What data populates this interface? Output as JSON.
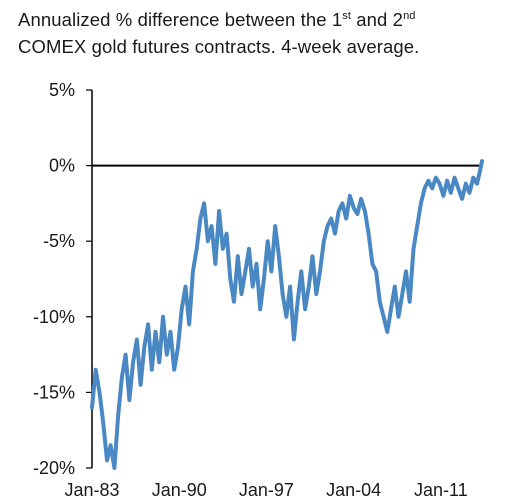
{
  "title": {
    "line1_text": "Annualized % difference between the 1",
    "sup1": "st",
    "and_text": " and 2",
    "sup2": "nd",
    "line2": "COMEX gold futures contracts. 4-week average."
  },
  "chart_data": {
    "type": "line",
    "title": "Annualized % difference between the 1st and 2nd COMEX gold futures contracts. 4-week average.",
    "xlabel": "",
    "ylabel": "",
    "x_tick_labels": [
      "Jan-83",
      "Jan-90",
      "Jan-97",
      "Jan-04",
      "Jan-11"
    ],
    "y_tick_labels": [
      "5%",
      "0%",
      "-5%",
      "-10%",
      "-15%",
      "-20%"
    ],
    "y_ticks": [
      5,
      0,
      -5,
      -10,
      -15,
      -20
    ],
    "ylim": [
      -20,
      5
    ],
    "xlim": [
      1983.0,
      2014.3
    ],
    "grid": false,
    "legend": "none",
    "line_color": "#4a88c4",
    "series": [
      {
        "x": [
          1983.0,
          1983.3,
          1983.6,
          1983.9,
          1984.2,
          1984.5,
          1984.8,
          1985.1,
          1985.4,
          1985.7,
          1986.0,
          1986.3,
          1986.6,
          1986.9,
          1987.2,
          1987.5,
          1987.8,
          1988.1,
          1988.4,
          1988.7,
          1989.0,
          1989.3,
          1989.6,
          1989.9,
          1990.2,
          1990.5,
          1990.8,
          1991.1,
          1991.4,
          1991.7,
          1992.0,
          1992.3,
          1992.6,
          1992.9,
          1993.2,
          1993.5,
          1993.8,
          1994.1,
          1994.4,
          1994.7,
          1995.0,
          1995.3,
          1995.6,
          1995.9,
          1996.2,
          1996.5,
          1996.8,
          1997.1,
          1997.4,
          1997.7,
          1998.0,
          1998.3,
          1998.6,
          1998.9,
          1999.2,
          1999.5,
          1999.8,
          2000.1,
          2000.4,
          2000.7,
          2001.0,
          2001.3,
          2001.6,
          2001.9,
          2002.2,
          2002.5,
          2002.8,
          2003.1,
          2003.4,
          2003.7,
          2004.0,
          2004.3,
          2004.6,
          2004.9,
          2005.2,
          2005.5,
          2005.8,
          2006.1,
          2006.4,
          2006.7,
          2007.0,
          2007.3,
          2007.6,
          2007.9,
          2008.2,
          2008.5,
          2008.8,
          2009.1,
          2009.4,
          2009.7,
          2010.0,
          2010.3,
          2010.6,
          2010.9,
          2011.2,
          2011.5,
          2011.8,
          2012.1,
          2012.4,
          2012.7,
          2013.0,
          2013.3,
          2013.6,
          2013.9,
          2014.1,
          2014.3
        ],
        "values": [
          -16.0,
          -13.5,
          -15.0,
          -17.0,
          -19.5,
          -18.5,
          -20.0,
          -16.5,
          -14.0,
          -12.5,
          -15.5,
          -13.0,
          -11.5,
          -14.5,
          -12.0,
          -10.5,
          -13.5,
          -11.0,
          -13.0,
          -10.0,
          -12.5,
          -11.0,
          -13.5,
          -12.0,
          -9.5,
          -8.0,
          -10.5,
          -7.0,
          -5.5,
          -3.5,
          -2.5,
          -5.0,
          -4.0,
          -6.5,
          -3.0,
          -5.5,
          -4.5,
          -7.5,
          -9.0,
          -6.0,
          -8.5,
          -7.0,
          -5.5,
          -8.0,
          -6.5,
          -9.5,
          -7.5,
          -5.0,
          -7.0,
          -4.0,
          -6.0,
          -8.5,
          -10.0,
          -8.0,
          -11.5,
          -9.0,
          -7.0,
          -9.5,
          -8.0,
          -6.0,
          -8.5,
          -7.0,
          -5.0,
          -4.0,
          -3.5,
          -4.5,
          -3.0,
          -2.5,
          -3.5,
          -2.0,
          -2.8,
          -3.2,
          -2.2,
          -3.0,
          -4.5,
          -6.5,
          -7.0,
          -9.0,
          -10.0,
          -11.0,
          -9.5,
          -8.0,
          -10.0,
          -8.5,
          -7.0,
          -9.0,
          -5.5,
          -4.0,
          -2.5,
          -1.5,
          -1.0,
          -1.5,
          -0.8,
          -1.2,
          -2.0,
          -1.0,
          -1.8,
          -0.8,
          -1.5,
          -2.2,
          -1.2,
          -1.8,
          -0.8,
          -1.2,
          -0.5,
          0.3
        ]
      }
    ]
  }
}
